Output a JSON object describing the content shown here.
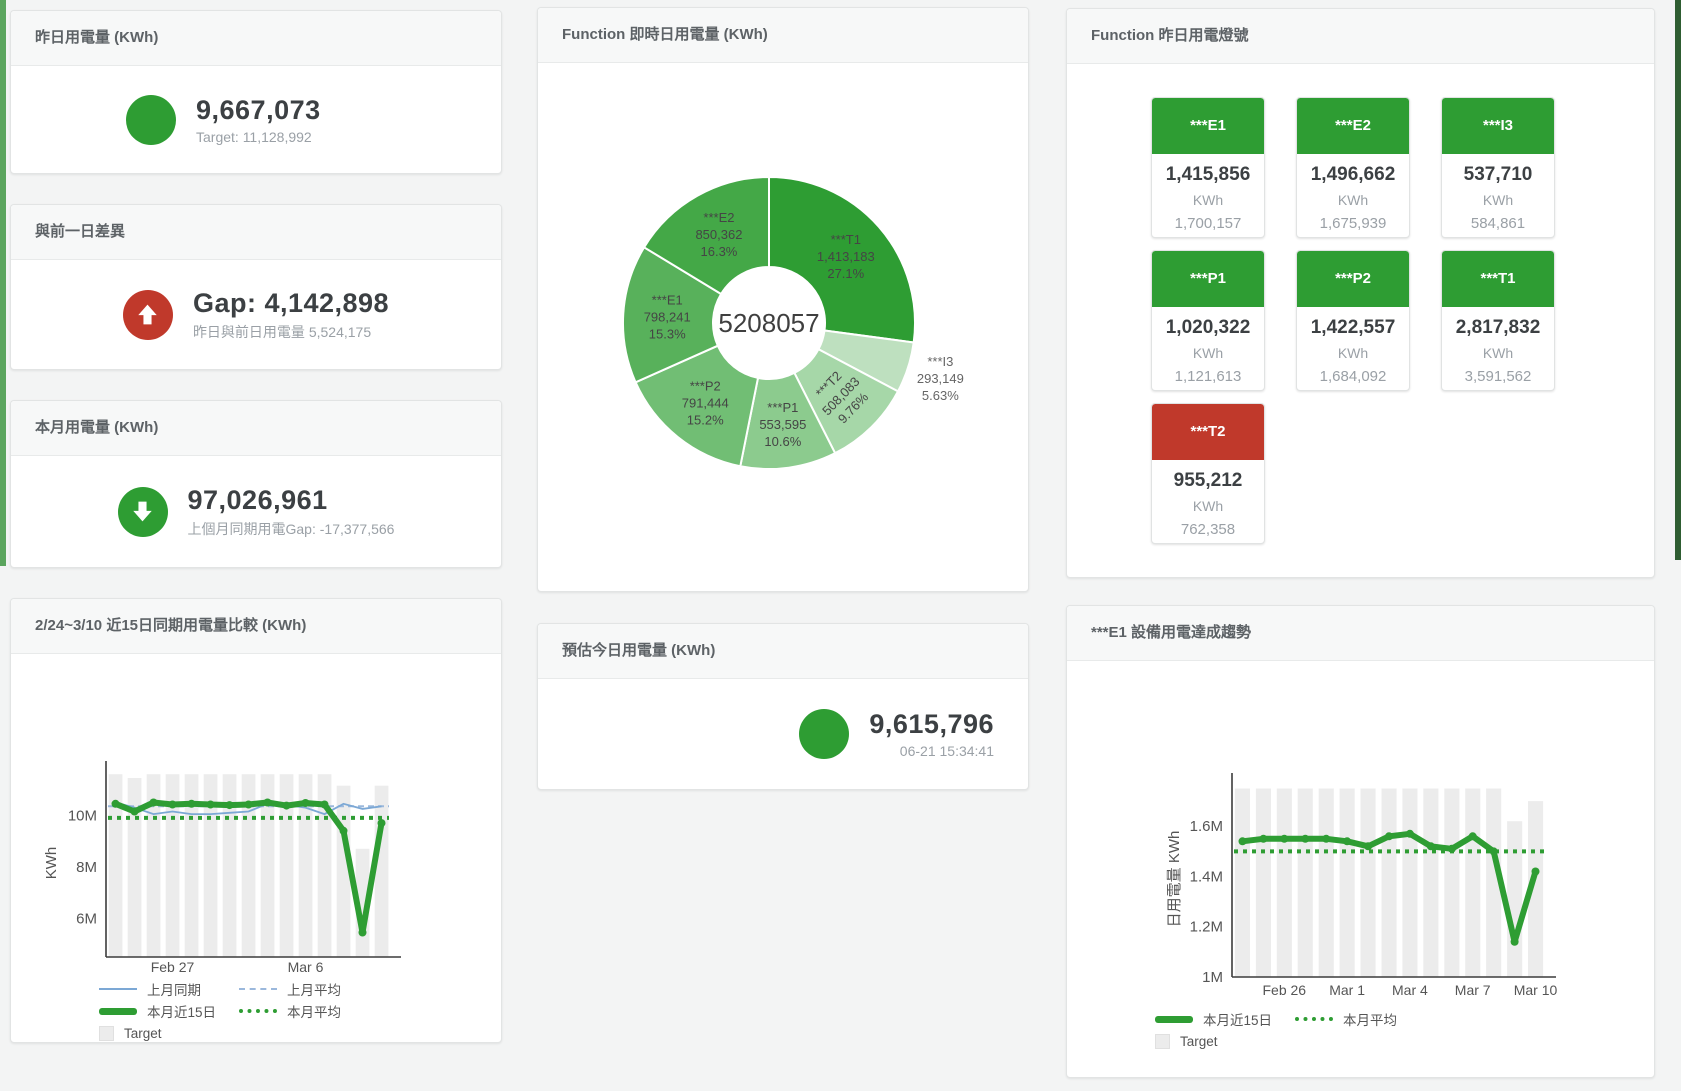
{
  "colors": {
    "green": "#2E9D33",
    "red": "#C0392B",
    "target_bar": "#ECECEC",
    "blue": "#7CA8D5",
    "blue_light": "#9BB8DC"
  },
  "cards": {
    "yesterday": {
      "title": "昨日用電量 (KWh)",
      "value": "9,667,073",
      "sub": "Target: 11,128,992"
    },
    "gap": {
      "title": "與前一日差異",
      "value": "Gap: 4,142,898",
      "sub": "昨日與前日用電量 5,524,175"
    },
    "month": {
      "title": "本月用電量 (KWh)",
      "value": "97,026,961",
      "sub": "上個月同期用電Gap: -17,377,566"
    },
    "compare": {
      "title": "2/24~3/10 近15日同期用電量比較 (KWh)"
    },
    "realtime": {
      "title": "Function 即時日用電量 (KWh)"
    },
    "estimate": {
      "title": "預估今日用電量 (KWh)",
      "value": "9,615,796",
      "sub": "06-21 15:34:41"
    },
    "lights": {
      "title": "Function 昨日用電燈號"
    },
    "trend": {
      "title": "***E1 設備用電達成趨勢"
    }
  },
  "lights_tiles": [
    {
      "name": "***E1",
      "status": "green",
      "value": "1,415,856",
      "unit": "KWh",
      "target": "1,700,157"
    },
    {
      "name": "***E2",
      "status": "green",
      "value": "1,496,662",
      "unit": "KWh",
      "target": "1,675,939"
    },
    {
      "name": "***I3",
      "status": "green",
      "value": "537,710",
      "unit": "KWh",
      "target": "584,861"
    },
    {
      "name": "***P1",
      "status": "green",
      "value": "1,020,322",
      "unit": "KWh",
      "target": "1,121,613"
    },
    {
      "name": "***P2",
      "status": "green",
      "value": "1,422,557",
      "unit": "KWh",
      "target": "1,684,092"
    },
    {
      "name": "***T1",
      "status": "green",
      "value": "2,817,832",
      "unit": "KWh",
      "target": "3,591,562"
    },
    {
      "name": "***T2",
      "status": "red",
      "value": "955,212",
      "unit": "KWh",
      "target": "762,358"
    }
  ],
  "chart_data": [
    {
      "type": "pie",
      "variant": "donut",
      "title": "Function 即時日用電量 (KWh)",
      "center_total": "5208057",
      "slices": [
        {
          "name": "***T1",
          "value": 1413183,
          "value_label": "1,413,183",
          "pct_label": "27.1%",
          "color": "#2E9D33"
        },
        {
          "name": "***I3",
          "value": 293149,
          "value_label": "293,149",
          "pct_label": "5.63%",
          "color": "#BEE0BF",
          "label_outside": true
        },
        {
          "name": "***T2",
          "value": 508083,
          "value_label": "508,083",
          "pct_label": "9.76%",
          "color": "#A6D7A8",
          "label_rotate": -46
        },
        {
          "name": "***P1",
          "value": 553595,
          "value_label": "553,595",
          "pct_label": "10.6%",
          "color": "#8CCB8E"
        },
        {
          "name": "***P2",
          "value": 791444,
          "value_label": "791,444",
          "pct_label": "15.2%",
          "color": "#71BE74"
        },
        {
          "name": "***E1",
          "value": 798241,
          "value_label": "798,241",
          "pct_label": "15.3%",
          "color": "#58B15B"
        },
        {
          "name": "***E2",
          "value": 850362,
          "value_label": "850,362",
          "pct_label": "16.3%",
          "color": "#44A847"
        }
      ]
    },
    {
      "type": "line",
      "title": "2/24~3/10 近15日同期用電量比較 (KWh)",
      "ylabel": "KWh",
      "unit": "M KWh",
      "ylim": [
        4.5,
        11.8
      ],
      "yticks": [
        {
          "value": 6,
          "label": "6M"
        },
        {
          "value": 8,
          "label": "8M"
        },
        {
          "value": 10,
          "label": "10M"
        }
      ],
      "x_count": 15,
      "x_range": "2/24~3/10",
      "xticks": [
        {
          "index": 3,
          "label": "Feb 27"
        },
        {
          "index": 10,
          "label": "Mar 6"
        }
      ],
      "target_bars": {
        "name": "Target",
        "color": "#ECECEC",
        "values": [
          11.6,
          11.45,
          11.6,
          11.6,
          11.6,
          11.6,
          11.6,
          11.6,
          11.6,
          11.6,
          11.6,
          11.6,
          11.15,
          8.7,
          11.15
        ]
      },
      "series": [
        {
          "name": "上月平均",
          "style": "dashed",
          "color": "#9BB8DC",
          "constant": 10.35
        },
        {
          "name": "本月平均",
          "style": "dotted",
          "color": "#2E9D33",
          "constant": 9.9
        },
        {
          "name": "上月同期",
          "style": "thin",
          "color": "#7CA8D5",
          "values": [
            10.5,
            10.3,
            10.05,
            10.15,
            10.05,
            10.05,
            10.1,
            10.15,
            10.45,
            10.4,
            10.3,
            10.05,
            10.45,
            10.25,
            10.35
          ]
        },
        {
          "name": "本月近15日",
          "style": "thick",
          "color": "#2E9D33",
          "values": [
            10.45,
            10.15,
            10.5,
            10.42,
            10.45,
            10.42,
            10.4,
            10.42,
            10.5,
            10.38,
            10.48,
            10.42,
            9.4,
            5.45,
            9.7
          ]
        }
      ],
      "legend": [
        [
          {
            "label": "上月同期",
            "swatch": "thin",
            "color": "#7CA8D5"
          },
          {
            "label": "上月平均",
            "swatch": "dashed",
            "color": "#9BB8DC"
          }
        ],
        [
          {
            "label": "本月近15日",
            "swatch": "thick",
            "color": "#2E9D33"
          },
          {
            "label": "本月平均",
            "swatch": "dotted",
            "color": "#2E9D33"
          }
        ],
        [
          {
            "label": "Target",
            "swatch": "box",
            "color": "#ECECEC"
          }
        ]
      ]
    },
    {
      "type": "line",
      "title": "***E1 設備用電達成趨勢",
      "ylabel": "日用電量 KWh",
      "unit": "M KWh",
      "ylim": [
        1.0,
        1.78
      ],
      "yticks": [
        {
          "value": 1,
          "label": "1M"
        },
        {
          "value": 1.2,
          "label": "1.2M"
        },
        {
          "value": 1.4,
          "label": "1.4M"
        },
        {
          "value": 1.6,
          "label": "1.6M"
        }
      ],
      "x_count": 15,
      "xticks": [
        {
          "index": 2,
          "label": "Feb 26"
        },
        {
          "index": 5,
          "label": "Mar 1"
        },
        {
          "index": 8,
          "label": "Mar 4"
        },
        {
          "index": 11,
          "label": "Mar 7"
        },
        {
          "index": 14,
          "label": "Mar 10"
        }
      ],
      "target_bars": {
        "name": "Target",
        "color": "#ECECEC",
        "values": [
          1.75,
          1.75,
          1.75,
          1.75,
          1.75,
          1.75,
          1.75,
          1.75,
          1.75,
          1.75,
          1.75,
          1.75,
          1.75,
          1.62,
          1.7
        ]
      },
      "series": [
        {
          "name": "本月平均",
          "style": "dotted",
          "color": "#2E9D33",
          "constant": 1.5
        },
        {
          "name": "本月近15日",
          "style": "thick",
          "color": "#2E9D33",
          "values": [
            1.54,
            1.55,
            1.55,
            1.55,
            1.55,
            1.54,
            1.52,
            1.56,
            1.57,
            1.52,
            1.51,
            1.56,
            1.5,
            1.14,
            1.42
          ]
        }
      ],
      "legend": [
        [
          {
            "label": "本月近15日",
            "swatch": "thick",
            "color": "#2E9D33"
          },
          {
            "label": "本月平均",
            "swatch": "dotted",
            "color": "#2E9D33"
          }
        ],
        [
          {
            "label": "Target",
            "swatch": "box",
            "color": "#ECECEC"
          }
        ]
      ]
    }
  ]
}
